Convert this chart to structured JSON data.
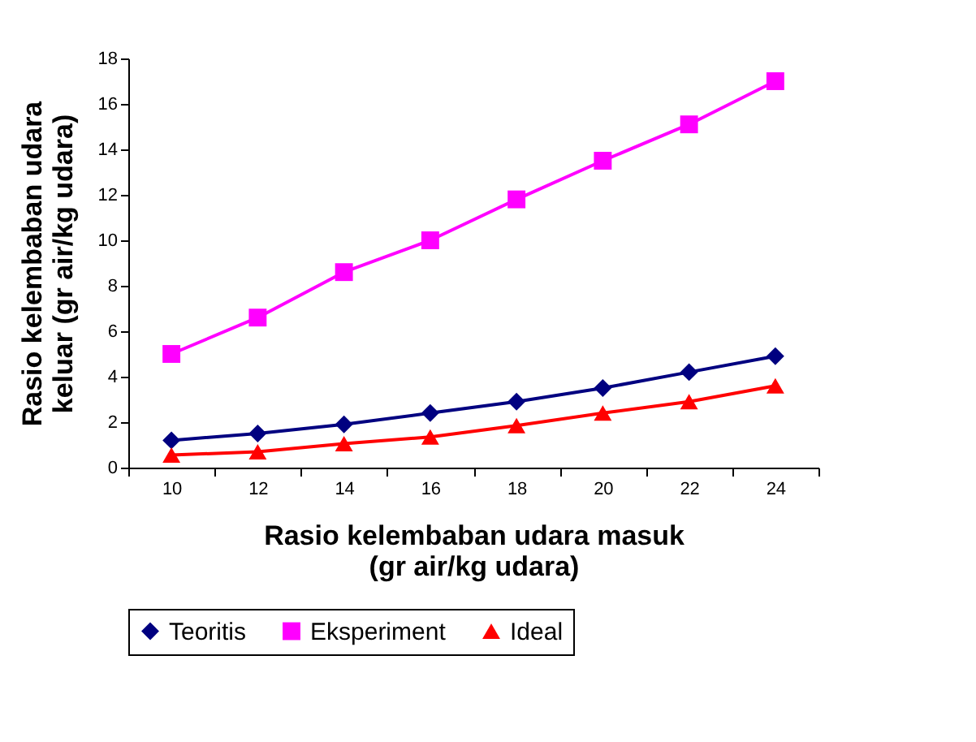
{
  "chart_data": {
    "type": "line",
    "xlabel": "Rasio kelembaban udara masuk\n(gr air/kg udara)",
    "ylabel": "Rasio kelembaban udara\nkeluar (gr air/kg udara)",
    "categories": [
      "10",
      "12",
      "14",
      "16",
      "18",
      "20",
      "22",
      "24"
    ],
    "series": [
      {
        "name": "Teoritis",
        "color": "#000080",
        "marker": "diamond",
        "values": [
          1.2,
          1.5,
          1.9,
          2.4,
          2.9,
          3.5,
          4.2,
          4.9
        ]
      },
      {
        "name": "Eksperiment",
        "color": "#ff00ff",
        "marker": "square",
        "values": [
          5.0,
          6.6,
          8.6,
          10.0,
          11.8,
          13.5,
          15.1,
          17.0
        ]
      },
      {
        "name": "Ideal",
        "color": "#ff0000",
        "marker": "triangle",
        "values": [
          0.55,
          0.7,
          1.05,
          1.35,
          1.85,
          2.4,
          2.9,
          3.6
        ]
      }
    ],
    "ylim": [
      0,
      18
    ],
    "yticks": [
      0,
      2,
      4,
      6,
      8,
      10,
      12,
      14,
      16,
      18
    ],
    "grid": false,
    "legend": "bottom",
    "line_style": "solid"
  }
}
